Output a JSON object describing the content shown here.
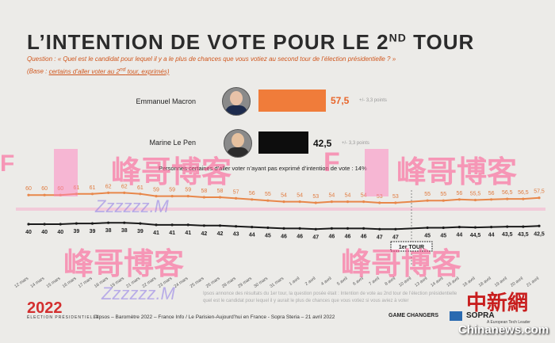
{
  "header": {
    "title_main": "L’INTENTION DE VOTE POUR LE 2",
    "title_sup": "ND",
    "title_end": " TOUR",
    "question": "Question : « Quel est le candidat pour lequel il y a le plus de chances que vous votiez au second tour de l’élection présidentielle ? »",
    "base_prefix": "(Base : ",
    "base_link": "certains d’aller voter au 2",
    "base_sup": "nd",
    "base_end": " tour, exprimés)"
  },
  "candidates": [
    {
      "name": "Emmanuel Macron",
      "value": 57.5,
      "value_label": "57,5",
      "margin": "+/- 3,3 points",
      "color": "#f07c3a",
      "label_color": "#e8652a"
    },
    {
      "name": "Marine Le Pen",
      "value": 42.5,
      "value_label": "42,5",
      "margin": "+/- 3,3 points",
      "color": "#0d0d0d",
      "label_color": "#111111"
    }
  ],
  "note": "Personnes certaines d’aller voter n’ayant pas exprimé d’intention de vote : 14%",
  "chart_data": {
    "type": "line",
    "x": [
      "12 mars",
      "14 mars",
      "15 mars",
      "16 mars",
      "17 mars",
      "18 mars",
      "19 mars",
      "21 mars",
      "22 mars",
      "23 mars",
      "24 mars",
      "25 mars",
      "26 mars",
      "28 mars",
      "29 mars",
      "30 mars",
      "31 mars",
      "1 avril",
      "2 avril",
      "4 avril",
      "5 avril",
      "6 avril",
      "7 avril",
      "8 avril",
      "10 avril",
      "13 avril",
      "14 avril",
      "15 avril",
      "16 avril",
      "18 avril",
      "19 avril",
      "20 avril",
      "21 avril"
    ],
    "series": [
      {
        "name": "Emmanuel Macron",
        "color": "#e8874a",
        "labels": [
          "60",
          "60",
          "60",
          "61",
          "61",
          "62",
          "62",
          "61",
          "59",
          "59",
          "59",
          "58",
          "58",
          "57",
          "56",
          "55",
          "54",
          "54",
          "53",
          "54",
          "54",
          "54",
          "53",
          "53",
          "",
          "55",
          "55",
          "56",
          "55,5",
          "56",
          "56,5",
          "56,5",
          "57,5"
        ],
        "values": [
          60,
          60,
          60,
          61,
          61,
          62,
          62,
          61,
          59,
          59,
          59,
          58,
          58,
          57,
          56,
          55,
          54,
          54,
          53,
          54,
          54,
          54,
          53,
          53,
          null,
          55,
          55,
          56,
          55.5,
          56,
          56.5,
          56.5,
          57.5
        ]
      },
      {
        "name": "Marine Le Pen",
        "color": "#1a1a1a",
        "labels": [
          "40",
          "40",
          "40",
          "39",
          "39",
          "38",
          "38",
          "39",
          "41",
          "41",
          "41",
          "42",
          "42",
          "43",
          "44",
          "45",
          "46",
          "46",
          "47",
          "46",
          "46",
          "46",
          "47",
          "47",
          "",
          "45",
          "45",
          "44",
          "44,5",
          "44",
          "43,5",
          "43,5",
          "42,5"
        ],
        "values": [
          40,
          40,
          40,
          39,
          39,
          38,
          38,
          39,
          41,
          41,
          41,
          42,
          42,
          43,
          44,
          45,
          46,
          46,
          47,
          46,
          46,
          46,
          47,
          47,
          null,
          45,
          45,
          44,
          44.5,
          44,
          43.5,
          43.5,
          42.5
        ]
      }
    ],
    "annotation": "1er TOUR",
    "annotation_at": "10 avril"
  },
  "footer": {
    "logo_a": "20",
    "logo_b": "22",
    "logo_sub": "ÉLECTION PRÉSIDENTIELLE",
    "credits": "©Ipsos – Baromètre 2022 – France Info / Le Parisien-Aujourd’hui en France - Sopra Steria – 21 avril 2022",
    "game_changers": "GAME CHANGERS",
    "sopra": "SOPRA",
    "sopra_sub": "A European Tech Leader",
    "faded_note": "Ipsos annonce des résultats du 1er tour, la question posée était : Intention de vote au 2nd tour de l’élection présidentielle",
    "faded_note2": "quel est le candidat pour lequel il y aurait le plus de chances que vous votiez si vous aviez à voter"
  },
  "overlay": {
    "watermark_text": "峰哥博客",
    "watermark_latin": "Zzzzzz.M",
    "watermark_f": "F",
    "cnews_logo": "中新網",
    "cnews_site": "Chinanews.com"
  }
}
